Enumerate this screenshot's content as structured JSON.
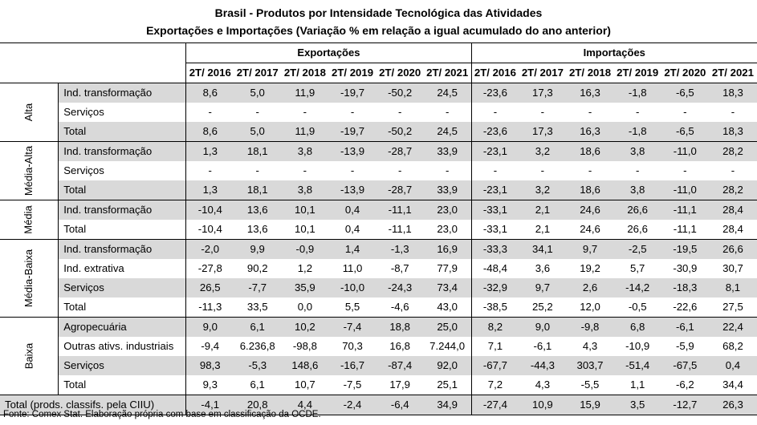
{
  "title": "Brasil - Produtos por Intensidade Tecnológica das Atividades",
  "subtitle": "Exportações e Importações (Variação % em relação a igual acumulado do ano anterior)",
  "headers": {
    "exports": "Exportações",
    "imports": "Importações",
    "years": [
      "2T/ 2016",
      "2T/ 2017",
      "2T/ 2018",
      "2T/ 2019",
      "2T/ 2020",
      "2T/ 2021"
    ]
  },
  "groups": [
    {
      "name": "Alta",
      "rows": [
        {
          "label": "Ind. transformação",
          "exp": [
            "8,6",
            "5,0",
            "11,9",
            "-19,7",
            "-50,2",
            "24,5"
          ],
          "imp": [
            "-23,6",
            "17,3",
            "16,3",
            "-1,8",
            "-6,5",
            "18,3"
          ]
        },
        {
          "label": "Serviços",
          "exp": [
            "-",
            "-",
            "-",
            "-",
            "-",
            "-"
          ],
          "imp": [
            "-",
            "-",
            "-",
            "-",
            "-",
            "-"
          ]
        },
        {
          "label": "Total",
          "exp": [
            "8,6",
            "5,0",
            "11,9",
            "-19,7",
            "-50,2",
            "24,5"
          ],
          "imp": [
            "-23,6",
            "17,3",
            "16,3",
            "-1,8",
            "-6,5",
            "18,3"
          ]
        }
      ]
    },
    {
      "name": "Média-Alta",
      "rows": [
        {
          "label": "Ind. transformação",
          "exp": [
            "1,3",
            "18,1",
            "3,8",
            "-13,9",
            "-28,7",
            "33,9"
          ],
          "imp": [
            "-23,1",
            "3,2",
            "18,6",
            "3,8",
            "-11,0",
            "28,2"
          ]
        },
        {
          "label": "Serviços",
          "exp": [
            "-",
            "-",
            "-",
            "-",
            "-",
            "-"
          ],
          "imp": [
            "-",
            "-",
            "-",
            "-",
            "-",
            "-"
          ]
        },
        {
          "label": "Total",
          "exp": [
            "1,3",
            "18,1",
            "3,8",
            "-13,9",
            "-28,7",
            "33,9"
          ],
          "imp": [
            "-23,1",
            "3,2",
            "18,6",
            "3,8",
            "-11,0",
            "28,2"
          ]
        }
      ]
    },
    {
      "name": "Média",
      "rows": [
        {
          "label": "Ind. transformação",
          "exp": [
            "-10,4",
            "13,6",
            "10,1",
            "0,4",
            "-11,1",
            "23,0"
          ],
          "imp": [
            "-33,1",
            "2,1",
            "24,6",
            "26,6",
            "-11,1",
            "28,4"
          ]
        },
        {
          "label": "Total",
          "exp": [
            "-10,4",
            "13,6",
            "10,1",
            "0,4",
            "-11,1",
            "23,0"
          ],
          "imp": [
            "-33,1",
            "2,1",
            "24,6",
            "26,6",
            "-11,1",
            "28,4"
          ]
        }
      ]
    },
    {
      "name": "Média-Baixa",
      "rows": [
        {
          "label": "Ind. transformação",
          "exp": [
            "-2,0",
            "9,9",
            "-0,9",
            "1,4",
            "-1,3",
            "16,9"
          ],
          "imp": [
            "-33,3",
            "34,1",
            "9,7",
            "-2,5",
            "-19,5",
            "26,6"
          ]
        },
        {
          "label": "Ind. extrativa",
          "exp": [
            "-27,8",
            "90,2",
            "1,2",
            "11,0",
            "-8,7",
            "77,9"
          ],
          "imp": [
            "-48,4",
            "3,6",
            "19,2",
            "5,7",
            "-30,9",
            "30,7"
          ]
        },
        {
          "label": "Serviços",
          "exp": [
            "26,5",
            "-7,7",
            "35,9",
            "-10,0",
            "-24,3",
            "73,4"
          ],
          "imp": [
            "-32,9",
            "9,7",
            "2,6",
            "-14,2",
            "-18,3",
            "8,1"
          ]
        },
        {
          "label": "Total",
          "exp": [
            "-11,3",
            "33,5",
            "0,0",
            "5,5",
            "-4,6",
            "43,0"
          ],
          "imp": [
            "-38,5",
            "25,2",
            "12,0",
            "-0,5",
            "-22,6",
            "27,5"
          ]
        }
      ]
    },
    {
      "name": "Baixa",
      "rows": [
        {
          "label": "Agropecuária",
          "exp": [
            "9,0",
            "6,1",
            "10,2",
            "-7,4",
            "18,8",
            "25,0"
          ],
          "imp": [
            "8,2",
            "9,0",
            "-9,8",
            "6,8",
            "-6,1",
            "22,4"
          ]
        },
        {
          "label": "Outras ativs. industriais",
          "exp": [
            "-9,4",
            "6.236,8",
            "-98,8",
            "70,3",
            "16,8",
            "7.244,0"
          ],
          "imp": [
            "7,1",
            "-6,1",
            "4,3",
            "-10,9",
            "-5,9",
            "68,2"
          ]
        },
        {
          "label": "Serviços",
          "exp": [
            "98,3",
            "-5,3",
            "148,6",
            "-16,7",
            "-87,4",
            "92,0"
          ],
          "imp": [
            "-67,7",
            "-44,3",
            "303,7",
            "-51,4",
            "-67,5",
            "0,4"
          ]
        },
        {
          "label": "Total",
          "exp": [
            "9,3",
            "6,1",
            "10,7",
            "-7,5",
            "17,9",
            "25,1"
          ],
          "imp": [
            "7,2",
            "4,3",
            "-5,5",
            "1,1",
            "-6,2",
            "34,4"
          ]
        }
      ]
    }
  ],
  "total_row": {
    "label": "Total (prods. classifs. pela CIIU)",
    "exp": [
      "-4,1",
      "20,8",
      "4,4",
      "-2,4",
      "-6,4",
      "34,9"
    ],
    "imp": [
      "-27,4",
      "10,9",
      "15,9",
      "3,5",
      "-12,7",
      "26,3"
    ]
  },
  "footer": "Fonte: Comex Stat. Elaboração própria com base em classificação da OCDE."
}
